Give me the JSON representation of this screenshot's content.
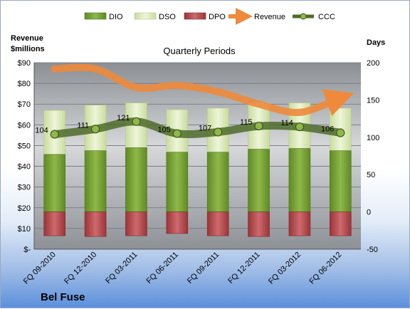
{
  "chart_data": {
    "type": "bar",
    "title": "Quarterly Periods",
    "company": "Bel Fuse",
    "left_axis_label": [
      "Revenue",
      "$millions"
    ],
    "right_axis_label": "Days",
    "left_ticks": [
      "$-",
      "$10",
      "$20",
      "$30",
      "$40",
      "$50",
      "$60",
      "$70",
      "$80",
      "$90"
    ],
    "right_ticks": [
      "-50",
      "0",
      "50",
      "100",
      "150",
      "200"
    ],
    "ylim_left": [
      0,
      90
    ],
    "ylim_right": [
      -50,
      200
    ],
    "grid": "horizontal",
    "legend_position": "top",
    "categories": [
      "FQ 09-2010",
      "FQ 12-2010",
      "FQ 03-2011",
      "FQ 06-2011",
      "FQ 09-2011",
      "FQ 12-2011",
      "FQ 03-2012",
      "FQ 06-2012"
    ],
    "series": [
      {
        "name": "DIO",
        "color": "#7aa23a",
        "values": [
          77,
          82,
          86,
          80,
          80,
          84,
          85,
          82
        ]
      },
      {
        "name": "DSO",
        "color": "#d6e7b0",
        "values": [
          59,
          61,
          60,
          57,
          59,
          62,
          61,
          57
        ]
      },
      {
        "name": "DPO",
        "color": "#b94a4e",
        "values": [
          32,
          33,
          32,
          29,
          32,
          33,
          32,
          32
        ]
      },
      {
        "name": "Revenue",
        "color": "#ee8a3a",
        "values": [
          87,
          87,
          78,
          79,
          76,
          70,
          66,
          73
        ]
      },
      {
        "name": "CCC",
        "color": "#4f6b2a",
        "values": [
          104,
          111,
          121,
          105,
          107,
          115,
          114,
          106
        ],
        "labels": [
          "104",
          "111",
          "121",
          "105",
          "107",
          "115",
          "114",
          "106"
        ]
      }
    ]
  }
}
